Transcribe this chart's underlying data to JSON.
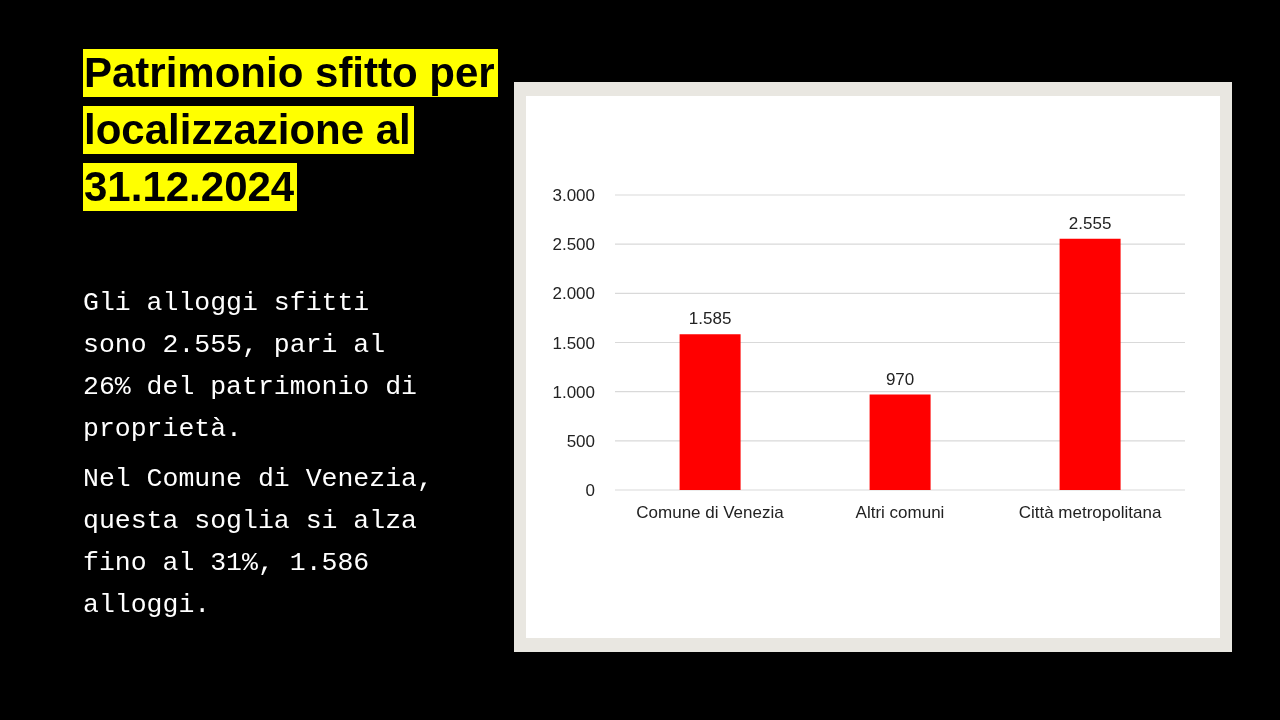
{
  "chart_data": {
    "type": "bar",
    "title": "Patrimonio sfitto per localizzazione al 31.12.2024",
    "annotations": [
      "Gli alloggi sfitti sono 2.555, pari al 26% del patrimonio di proprietà.",
      "Nel Comune di Venezia, questa soglia si alza fino al 31%, 1.586 alloggi."
    ],
    "categories": [
      "Comune di Venezia",
      "Altri comuni",
      "Città metropolitana"
    ],
    "values": [
      1585,
      970,
      2555
    ],
    "color": "#ff0000",
    "value_labels": [
      "1.585",
      "970",
      "2.555"
    ],
    "ylim": [
      0,
      3000
    ],
    "yticks": [
      0,
      500,
      {
        "value": 1000,
        "label": "1.000"
      },
      {
        "value": 1500,
        "label": "1.500"
      },
      {
        "value": 2000,
        "label": "2.000"
      },
      {
        "value": 2500,
        "label": "2.500"
      },
      {
        "value": 3000,
        "label": "3.000"
      }
    ],
    "grid": "y"
  }
}
